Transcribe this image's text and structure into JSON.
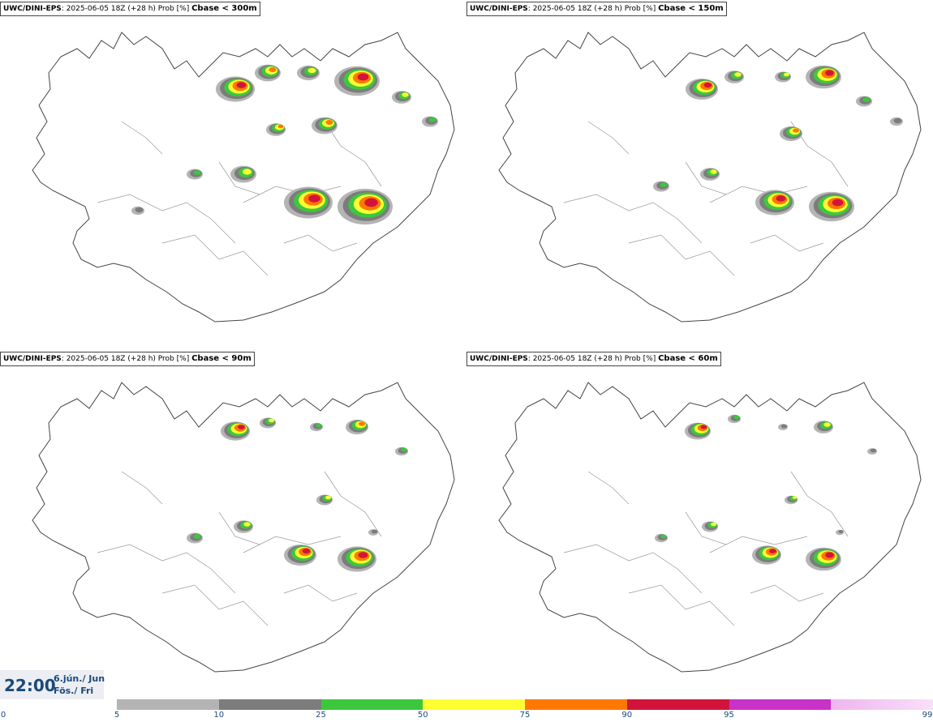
{
  "panels": [
    {
      "model": "UWC/DINI-EPS",
      "meta": ": 2025-06-05 18Z (+28 h) Prob [%]",
      "var": "Cbase < 300m"
    },
    {
      "model": "UWC/DINI-EPS",
      "meta": ": 2025-06-05 18Z (+28 h) Prob [%]",
      "var": "Cbase < 150m"
    },
    {
      "model": "UWC/DINI-EPS",
      "meta": ": 2025-06-05 18Z (+28 h) Prob [%]",
      "var": "Cbase < 90m"
    },
    {
      "model": "UWC/DINI-EPS",
      "meta": ": 2025-06-05 18Z (+28 h) Prob [%]",
      "var": "Cbase < 60m"
    }
  ],
  "valid_time": {
    "time": "22:00",
    "date_line1": "6.jún./ Jun",
    "date_line2": "Fös./ Fri"
  },
  "legend": {
    "ticks": [
      "0",
      "5",
      "10",
      "25",
      "50",
      "75",
      "90",
      "95",
      "99"
    ],
    "colors": [
      "#b4b4b4",
      "#7c7c7c",
      "#3cc83c",
      "#ffff32",
      "#ff7800",
      "#d2143c",
      "#c832c8",
      "#f0b4f0"
    ]
  }
}
